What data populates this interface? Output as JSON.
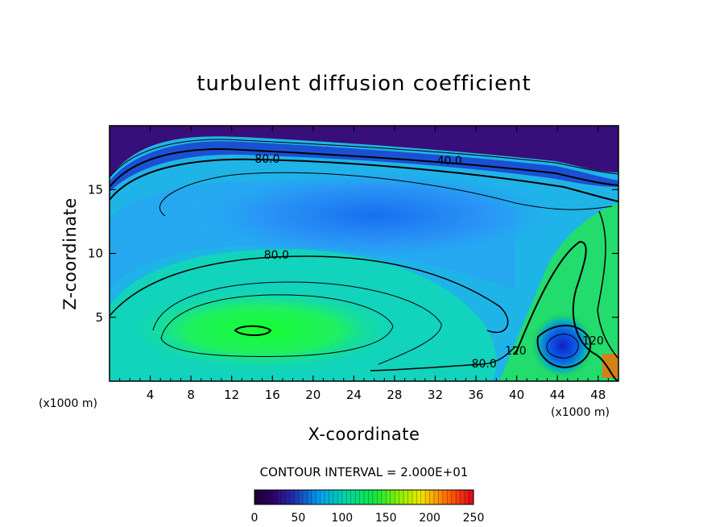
{
  "chart_data": {
    "type": "heatmap",
    "title": "turbulent diffusion coefficient",
    "xlabel": "X-coordinate",
    "ylabel": "Z-coordinate",
    "x_unit": "(x1000 m)",
    "xlim": [
      0,
      50
    ],
    "ylim": [
      0,
      20
    ],
    "x_ticks": [
      4,
      8,
      12,
      16,
      20,
      24,
      28,
      32,
      36,
      40,
      44,
      48
    ],
    "y_ticks": [
      5,
      10,
      15
    ],
    "contour_interval": "CONTOUR INTERVAL = 2.000E+01",
    "contour_labels": [
      {
        "text": "80.0",
        "x": 15.5,
        "y": 17.4
      },
      {
        "text": "40.0",
        "x": 33.4,
        "y": 17.3
      },
      {
        "text": "80.0",
        "x": 16.4,
        "y": 9.9
      },
      {
        "text": "80.0",
        "x": 36.8,
        "y": 1.4
      },
      {
        "text": "120",
        "x": 39.9,
        "y": 2.4
      },
      {
        "text": "120",
        "x": 47.5,
        "y": 3.2
      }
    ],
    "colorbar": {
      "min": 0,
      "max": 250,
      "ticks": [
        0,
        50,
        100,
        150,
        200,
        250
      ]
    },
    "fields": [
      {
        "name": "upper blue basin",
        "x": 26,
        "y": 13,
        "value": 40
      },
      {
        "name": "lower green maximum",
        "x": 15,
        "y": 4,
        "value": 140
      },
      {
        "name": "right minimum",
        "x": 44.5,
        "y": 2.8,
        "value": 20
      },
      {
        "name": "top layer",
        "x": 25,
        "y": 19,
        "value": 5
      },
      {
        "name": "bottom right edge",
        "x": 49.5,
        "y": 0.5,
        "value": 220
      }
    ]
  }
}
